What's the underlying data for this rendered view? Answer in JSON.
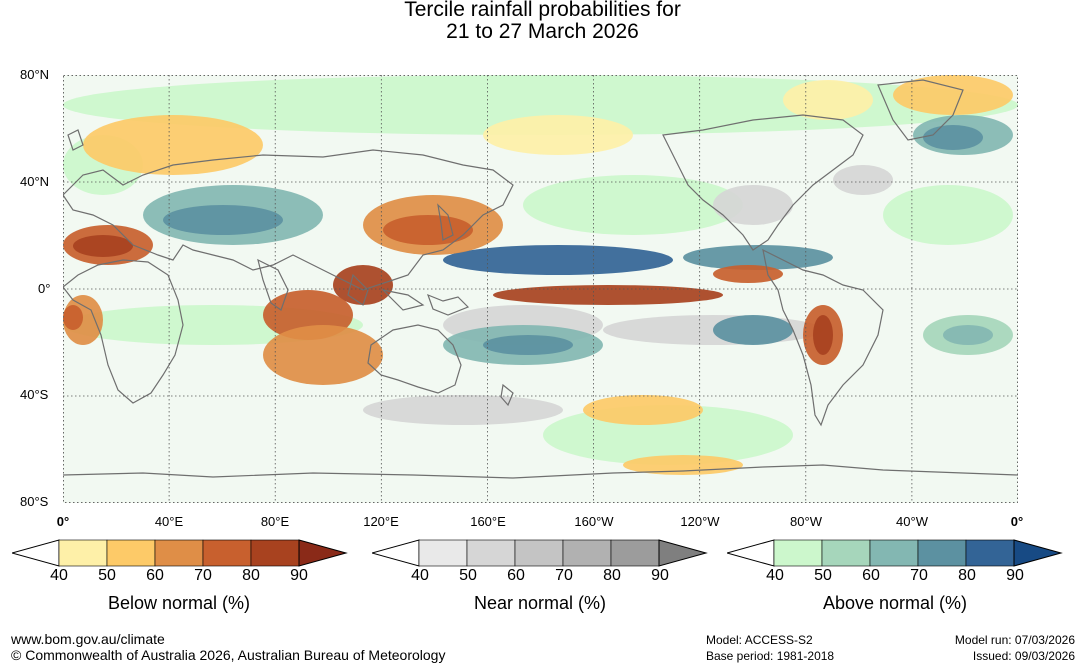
{
  "title_line1": "Tercile rainfall probabilities for",
  "title_line2": "21 to 27 March 2026",
  "lat_labels": [
    "80°N",
    "40°N",
    "0°",
    "40°S",
    "80°S"
  ],
  "lon_labels": [
    "0°",
    "40°E",
    "80°E",
    "120°E",
    "160°E",
    "160°W",
    "120°W",
    "80°W",
    "40°W",
    "0°"
  ],
  "legends": [
    {
      "name": "below",
      "title": "Below normal (%)",
      "ticks": [
        "40",
        "50",
        "60",
        "70",
        "80",
        "90"
      ],
      "colors": [
        "#ffffff",
        "#fef0a8",
        "#fdca68",
        "#df8e47",
        "#c8602e",
        "#a8421f",
        "#8a2a18"
      ]
    },
    {
      "name": "near",
      "title": "Near normal (%)",
      "ticks": [
        "40",
        "50",
        "60",
        "70",
        "80",
        "90"
      ],
      "colors": [
        "#ffffff",
        "#e9e9e9",
        "#d6d6d6",
        "#c4c4c4",
        "#b1b1b1",
        "#9c9c9c",
        "#7f7f7f"
      ]
    },
    {
      "name": "above",
      "title": "Above normal (%)",
      "ticks": [
        "40",
        "50",
        "60",
        "70",
        "80",
        "90"
      ],
      "colors": [
        "#ffffff",
        "#ccf7cc",
        "#a6d6bb",
        "#83b7b2",
        "#5c91a1",
        "#336496",
        "#174a84"
      ]
    }
  ],
  "footer": {
    "url": "www.bom.gov.au/climate",
    "copyright": "© Commonwealth of Australia 2026, Australian Bureau of Meteorology",
    "model": "Model: ACCESS-S2",
    "base_period": "Base period: 1981-2018",
    "model_run": "Model run: 07/03/2026",
    "issued": "Issued: 09/03/2026"
  }
}
